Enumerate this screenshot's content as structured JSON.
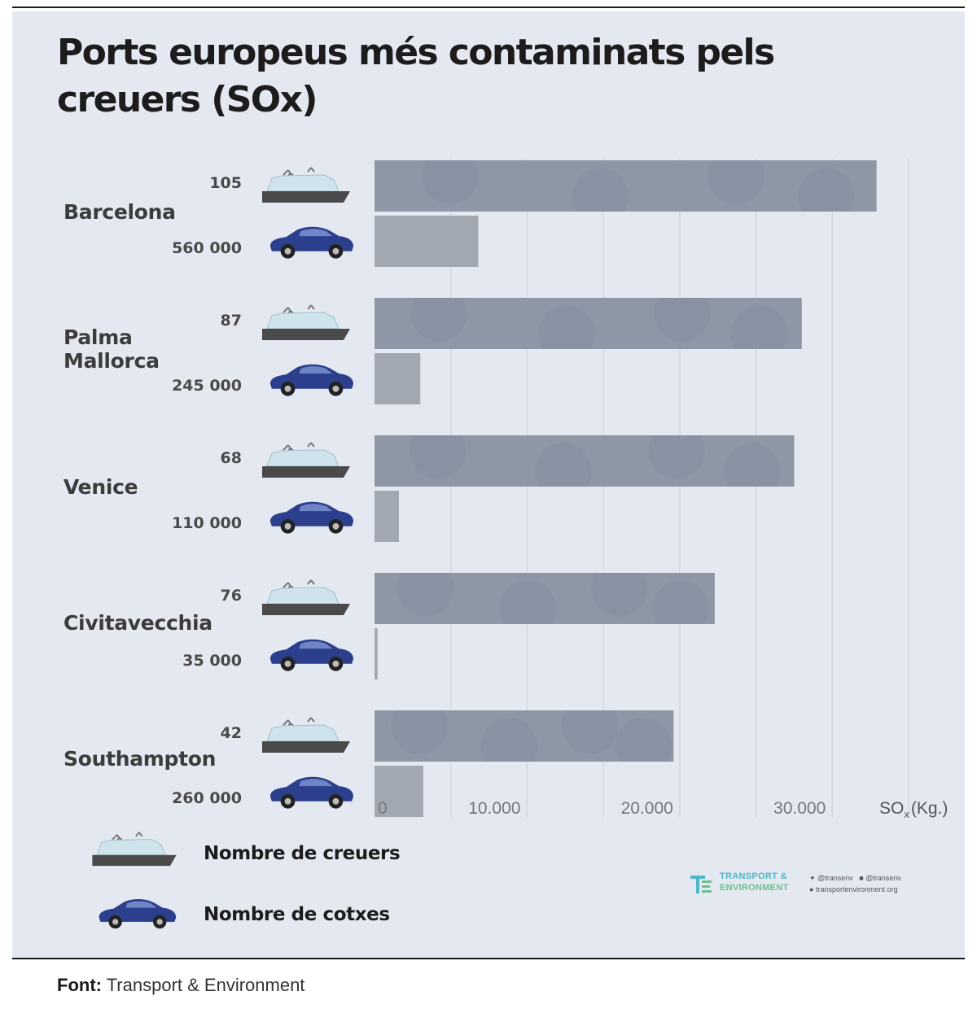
{
  "title": "Ports europeus més contaminats pels creuers (SOx)",
  "ports": [
    {
      "name": "Barcelona",
      "cruises": "105",
      "cars": "560 000"
    },
    {
      "name": "Palma Mallorca",
      "cruises": "87",
      "cars": "245 000"
    },
    {
      "name": "Venice",
      "cruises": "68",
      "cars": "110 000"
    },
    {
      "name": "Civitavecchia",
      "cruises": "76",
      "cars": "35 000"
    },
    {
      "name": "Southampton",
      "cruises": "42",
      "cars": "260 000"
    }
  ],
  "legend": {
    "cruises_label": "Nombre de creuers",
    "cars_label": "Nombre de cotxes"
  },
  "source": {
    "label": "Font:",
    "text": "Transport & Environment"
  },
  "logo": {
    "line1": "TRANSPORT &",
    "line2": "ENVIRONMENT",
    "twitter": "@transenv",
    "facebook": "@transenv",
    "site": "transportenvironment.org"
  },
  "colors": {
    "cruise_bar": "#8e97a6",
    "car_bar": "#a2a8b2",
    "car_icon": "#2b3f8c",
    "ship_hull": "#4a4a4a",
    "ship_cabin": "#cfe3ec",
    "panel": "#e4e8f1"
  },
  "chart_data": {
    "type": "bar",
    "orientation": "horizontal",
    "categories": [
      "Barcelona",
      "Palma Mallorca",
      "Venice",
      "Civitavecchia",
      "Southampton"
    ],
    "series": [
      {
        "name": "Creuers",
        "values": [
          32900,
          28000,
          27500,
          22300,
          19600
        ]
      },
      {
        "name": "Cotxes",
        "values": [
          6800,
          3000,
          1600,
          200,
          3200
        ]
      }
    ],
    "xlim": [
      0,
      35000
    ],
    "xticks": [
      0,
      10000,
      20000,
      30000
    ],
    "xtick_labels": [
      "0",
      "10.000",
      "20.000",
      "30.000"
    ],
    "xlabel": "SO",
    "xlabel_sub": "x",
    "xlabel_unit": "(Kg.)",
    "grid": true
  }
}
